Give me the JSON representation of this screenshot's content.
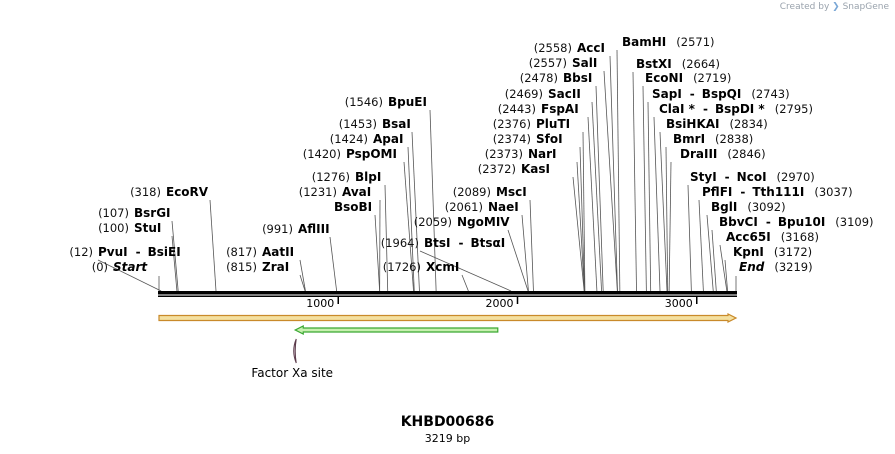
{
  "credit": {
    "prefix": "Created by",
    "brand": "SnapGene"
  },
  "map": {
    "name": "KHBD00686",
    "length_text": "3219 bp",
    "length": 3219
  },
  "ticks": [
    {
      "bp": 1000,
      "label": "1000"
    },
    {
      "bp": 2000,
      "label": "2000"
    },
    {
      "bp": 3000,
      "label": "3000"
    }
  ],
  "sites": [
    {
      "name": "PvuI",
      "pos": "(12)",
      "bp": 12,
      "second": "BsiEI"
    },
    {
      "name": "Start",
      "pos": "(0)",
      "bp": 0,
      "italic": true
    },
    {
      "name": "BsrGI",
      "pos": "(107)",
      "bp": 107
    },
    {
      "name": "StuI",
      "pos": "(100)",
      "bp": 100
    },
    {
      "name": "EcoRV",
      "pos": "(318)",
      "bp": 318
    },
    {
      "name": "AflIII",
      "pos": "(991)",
      "bp": 991
    },
    {
      "name": "AatII",
      "pos": "(817)",
      "bp": 817
    },
    {
      "name": "ZraI",
      "pos": "(815)",
      "bp": 815
    },
    {
      "name": "BpuEI",
      "pos": "(1546)",
      "bp": 1546
    },
    {
      "name": "BsaI",
      "pos": "(1453)",
      "bp": 1453
    },
    {
      "name": "ApaI",
      "pos": "(1424)",
      "bp": 1424
    },
    {
      "name": "PspOMI",
      "pos": "(1420)",
      "bp": 1420
    },
    {
      "name": "BlpI",
      "pos": "(1276)",
      "bp": 1276
    },
    {
      "name": "AvaI",
      "pos": "(1231)",
      "bp": 1231
    },
    {
      "name": "BsoBI",
      "pos": "",
      "bp": 1231
    },
    {
      "name": "NgoMIV",
      "pos": "(2059)",
      "bp": 2059
    },
    {
      "name": "BtsI",
      "pos": "(1964)",
      "bp": 1964,
      "second": "BtsαI"
    },
    {
      "name": "XcmI",
      "pos": "(1726)",
      "bp": 1726
    },
    {
      "name": "MscI",
      "pos": "(2089)",
      "bp": 2089
    },
    {
      "name": "NaeI",
      "pos": "(2061)",
      "bp": 2061
    },
    {
      "name": "AccI",
      "pos": "(2558)",
      "bp": 2558
    },
    {
      "name": "SalI",
      "pos": "(2557)",
      "bp": 2557
    },
    {
      "name": "BbsI",
      "pos": "(2478)",
      "bp": 2478
    },
    {
      "name": "SacII",
      "pos": "(2469)",
      "bp": 2469
    },
    {
      "name": "FspAI",
      "pos": "(2443)",
      "bp": 2443
    },
    {
      "name": "PluTI",
      "pos": "(2376)",
      "bp": 2376
    },
    {
      "name": "SfoI",
      "pos": "(2374)",
      "bp": 2374
    },
    {
      "name": "NarI",
      "pos": "(2373)",
      "bp": 2373
    },
    {
      "name": "KasI",
      "pos": "(2372)",
      "bp": 2372
    },
    {
      "name": "BamHI",
      "pos": "(2571)",
      "bp": 2571
    },
    {
      "name": "BstXI",
      "pos": "(2664)",
      "bp": 2664
    },
    {
      "name": "EcoNI",
      "pos": "(2719)",
      "bp": 2719
    },
    {
      "name": "SapI",
      "pos": "(2743)",
      "bp": 2743,
      "second": "BspQI"
    },
    {
      "name": "ClaI *",
      "pos": "(2795)",
      "bp": 2795,
      "second": "BspDI *"
    },
    {
      "name": "BsiHKAI",
      "pos": "(2834)",
      "bp": 2834
    },
    {
      "name": "BmrI",
      "pos": "(2838)",
      "bp": 2838
    },
    {
      "name": "DraIII",
      "pos": "(2846)",
      "bp": 2846
    },
    {
      "name": "StyI",
      "pos": "(2970)",
      "bp": 2970,
      "second": "NcoI"
    },
    {
      "name": "PflFI",
      "pos": "(3037)",
      "bp": 3037,
      "second": "Tth111I"
    },
    {
      "name": "BglI",
      "pos": "(3092)",
      "bp": 3092
    },
    {
      "name": "BbvCI",
      "pos": "(3109)",
      "bp": 3109,
      "second": "Bpu10I"
    },
    {
      "name": "Acc65I",
      "pos": "(3168)",
      "bp": 3168
    },
    {
      "name": "KpnI",
      "pos": "(3172)",
      "bp": 3172
    },
    {
      "name": "End",
      "pos": "(3219)",
      "bp": 3219,
      "italic": true
    }
  ],
  "features": [
    {
      "type": "arrow",
      "start_bp": 0,
      "end_bp": 3219,
      "direction": "forward",
      "fill": "#f4e0a0",
      "stroke": "#c98a2a"
    },
    {
      "type": "arrow",
      "start_bp": 760,
      "end_bp": 1890,
      "direction": "reverse",
      "fill": "#c8f0b0",
      "stroke": "#3aa832"
    },
    {
      "type": "site",
      "label": "Factor Xa site",
      "bp": 760
    }
  ],
  "colors": {
    "backbone": "#000000",
    "lines": "#555555"
  }
}
